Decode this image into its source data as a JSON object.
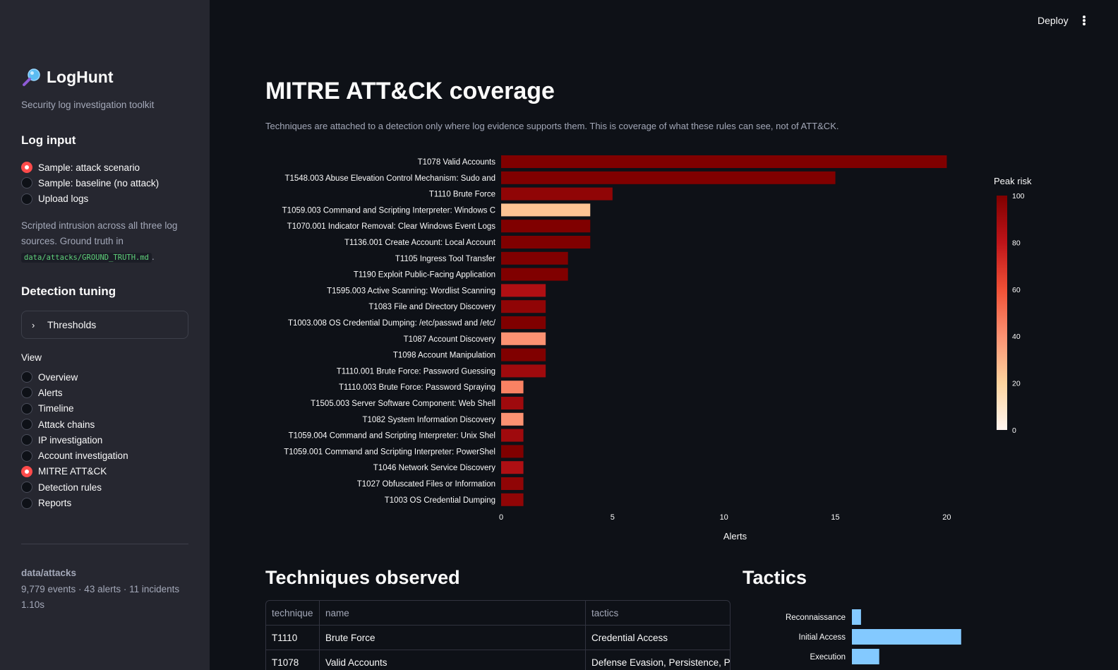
{
  "sidebar": {
    "title": "LogHunt",
    "subtitle": "Security log investigation toolkit",
    "log_input": {
      "heading": "Log input",
      "options": [
        {
          "label": "Sample: attack scenario",
          "selected": true
        },
        {
          "label": "Sample: baseline (no attack)",
          "selected": false
        },
        {
          "label": "Upload logs",
          "selected": false
        }
      ],
      "note_text": "Scripted intrusion across all three log sources. Ground truth in",
      "note_code": "data/attacks/GROUND_TRUTH.md",
      "note_tail": "."
    },
    "detection_tuning": {
      "heading": "Detection tuning",
      "expander_label": "Thresholds"
    },
    "view": {
      "label": "View",
      "options": [
        {
          "label": "Overview",
          "selected": false
        },
        {
          "label": "Alerts",
          "selected": false
        },
        {
          "label": "Timeline",
          "selected": false
        },
        {
          "label": "Attack chains",
          "selected": false
        },
        {
          "label": "IP investigation",
          "selected": false
        },
        {
          "label": "Account investigation",
          "selected": false
        },
        {
          "label": "MITRE ATT&CK",
          "selected": true
        },
        {
          "label": "Detection rules",
          "selected": false
        },
        {
          "label": "Reports",
          "selected": false
        }
      ]
    },
    "footer": {
      "path": "data/attacks",
      "stats": "9,779 events · 43 alerts · 11 incidents",
      "time": "1.10s"
    }
  },
  "header": {
    "deploy_label": "Deploy",
    "menu_icon": "kebab-menu-icon"
  },
  "main": {
    "title": "MITRE ATT&CK coverage",
    "caption": "Techniques are attached to a detection only where log evidence supports them. This is coverage of what these rules can see, not of ATT&CK.",
    "techniques_heading": "Techniques observed",
    "tactics_heading": "Tactics",
    "table": {
      "columns": [
        "technique",
        "name",
        "tactics"
      ],
      "rows": [
        [
          "T1110",
          "Brute Force",
          "Credential Access"
        ],
        [
          "T1078",
          "Valid Accounts",
          "Defense Evasion, Persistence, Privi"
        ]
      ]
    }
  },
  "chart_data": [
    {
      "type": "bar",
      "orientation": "horizontal",
      "categories": [
        "T1078  Valid Accounts",
        "T1548.003  Abuse Elevation Control Mechanism: Sudo and",
        "T1110  Brute Force",
        "T1059.003  Command and Scripting Interpreter: Windows C",
        "T1070.001  Indicator Removal: Clear Windows Event Logs",
        "T1136.001  Create Account: Local Account",
        "T1105  Ingress Tool Transfer",
        "T1190  Exploit Public-Facing Application",
        "T1595.003  Active Scanning: Wordlist Scanning",
        "T1083  File and Directory Discovery",
        "T1003.008  OS Credential Dumping: /etc/passwd and /etc/",
        "T1087  Account Discovery",
        "T1098  Account Manipulation",
        "T1110.001  Brute Force: Password Guessing",
        "T1110.003  Brute Force: Password Spraying",
        "T1505.003  Server Software Component: Web Shell",
        "T1082  System Information Discovery",
        "T1059.004  Command and Scripting Interpreter: Unix Shel",
        "T1059.001  Command and Scripting Interpreter: PowerShel",
        "T1046  Network Service Discovery",
        "T1027  Obfuscated Files or Information",
        "T1003  OS Credential Dumping"
      ],
      "values": [
        20,
        15,
        5,
        4,
        4,
        4,
        3,
        3,
        2,
        2,
        2,
        2,
        2,
        2,
        1,
        1,
        1,
        1,
        1,
        1,
        1,
        1
      ],
      "peak_risk": [
        100,
        100,
        95,
        25,
        100,
        100,
        100,
        100,
        85,
        95,
        100,
        40,
        100,
        90,
        45,
        90,
        40,
        90,
        100,
        85,
        95,
        95
      ],
      "xlabel": "Alerts",
      "ylabel": "",
      "xlim": [
        0,
        21.5
      ],
      "xticks": [
        0,
        5,
        10,
        15,
        20
      ],
      "colorbar": {
        "title": "Peak risk",
        "range": [
          0,
          100
        ],
        "ticks": [
          0,
          20,
          40,
          60,
          80,
          100
        ]
      },
      "grid": false
    },
    {
      "type": "bar",
      "orientation": "horizontal",
      "categories": [
        "Reconnaissance",
        "Initial Access",
        "Execution"
      ],
      "values": [
        1,
        12,
        3
      ],
      "color": "#83c9ff",
      "xlabel": "",
      "ylabel": ""
    }
  ]
}
